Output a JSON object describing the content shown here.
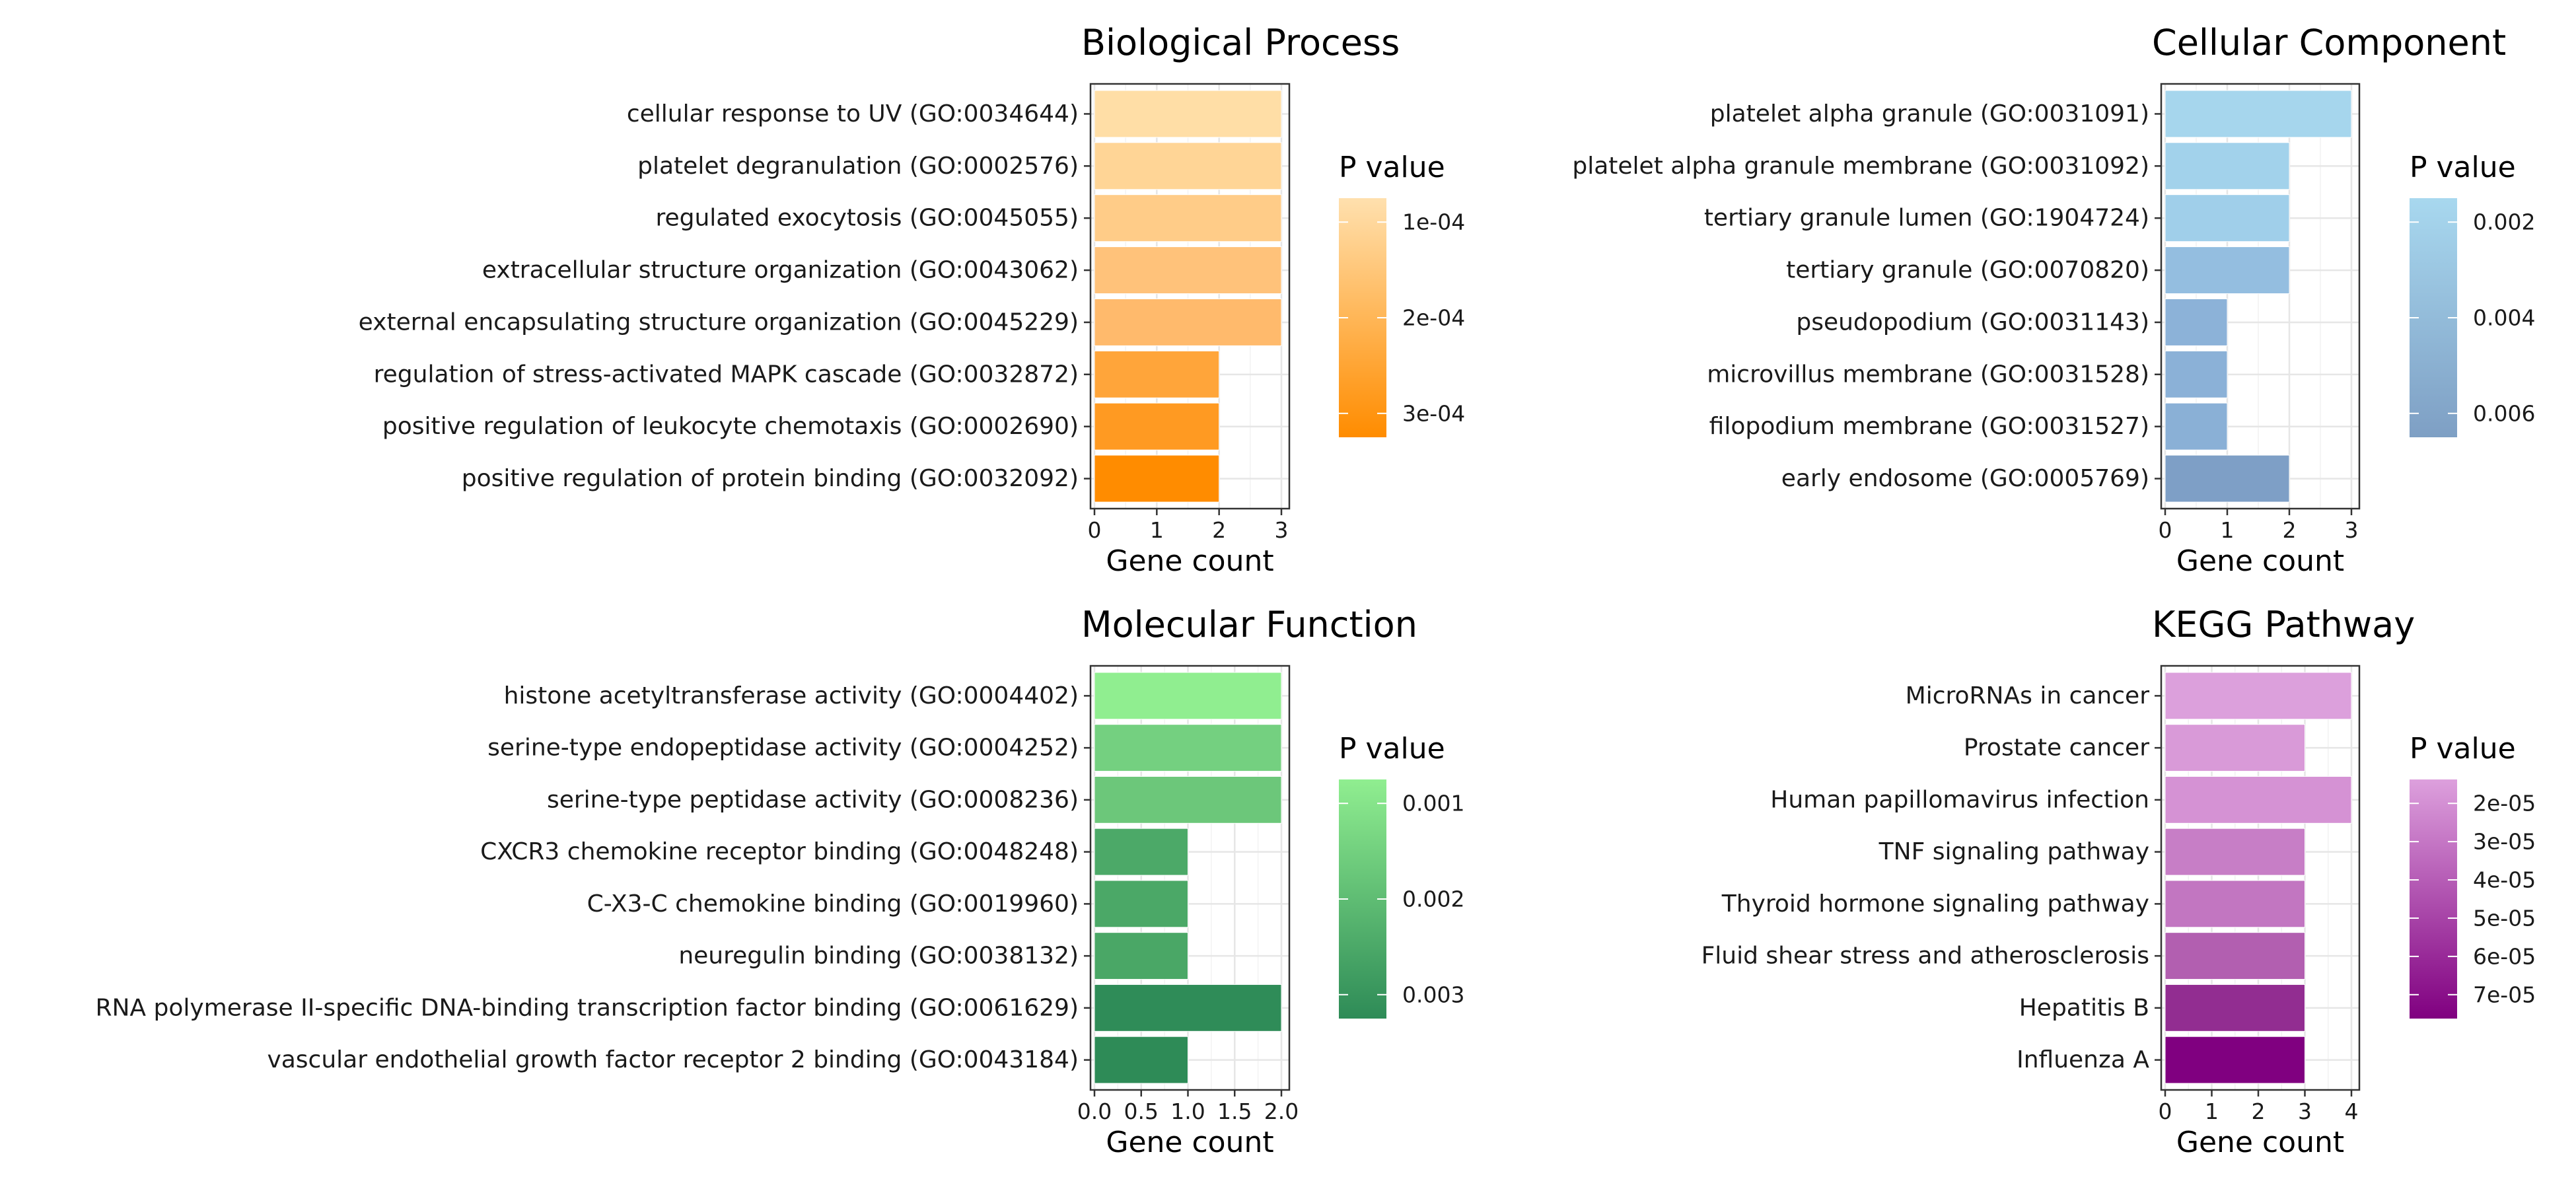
{
  "chart_data": [
    {
      "type": "bar",
      "orientation": "horizontal",
      "title": "Biological Process",
      "xlabel": "Gene count",
      "ylabel": "",
      "xlim": [
        0,
        3
      ],
      "xticks": [
        "0",
        "1",
        "2",
        "3"
      ],
      "grid": true,
      "legend": {
        "title": "P value",
        "position": "right",
        "colors": [
          "#FFE0AE",
          "#FF8C00"
        ],
        "tick_labels": [
          "1e-04",
          "2e-04",
          "3e-04"
        ]
      },
      "categories": [
        "cellular response to UV (GO:0034644)",
        "platelet degranulation (GO:0002576)",
        "regulated exocytosis (GO:0045055)",
        "extracellular structure organization (GO:0043062)",
        "external encapsulating structure organization (GO:0045229)",
        "regulation of stress-activated MAPK cascade (GO:0032872)",
        "positive regulation of leukocyte chemotaxis (GO:0002690)",
        "positive regulation of protein binding (GO:0032092)"
      ],
      "values": [
        3,
        3,
        3,
        3,
        3,
        2,
        2,
        2
      ],
      "bar_colors": [
        "#FFDEA6",
        "#FFD596",
        "#FFCC88",
        "#FFC27A",
        "#FFBA6C",
        "#FFA53A",
        "#FF9A22",
        "#FF8C00"
      ]
    },
    {
      "type": "bar",
      "orientation": "horizontal",
      "title": "Cellular Component",
      "xlabel": "Gene count",
      "ylabel": "",
      "xlim": [
        0,
        3
      ],
      "xticks": [
        "0",
        "1",
        "2",
        "3"
      ],
      "grid": true,
      "legend": {
        "title": "P value",
        "position": "right",
        "colors": [
          "#A8D8EF",
          "#7E9FC4"
        ],
        "tick_labels": [
          "0.002",
          "0.004",
          "0.006"
        ]
      },
      "categories": [
        "platelet alpha granule (GO:0031091)",
        "platelet alpha granule membrane (GO:0031092)",
        "tertiary granule lumen (GO:1904724)",
        "tertiary granule (GO:0070820)",
        "pseudopodium (GO:0031143)",
        "microvillus membrane (GO:0031528)",
        "filopodium membrane (GO:0031527)",
        "early endosome (GO:0005769)"
      ],
      "values": [
        3,
        2,
        2,
        2,
        1,
        1,
        1,
        2
      ],
      "bar_colors": [
        "#A6D6ED",
        "#A2D2EB",
        "#A0CFEA",
        "#94BEE0",
        "#8CB2D8",
        "#8BB1D7",
        "#8AB0D6",
        "#7E9FC6"
      ]
    },
    {
      "type": "bar",
      "orientation": "horizontal",
      "title": "Molecular Function",
      "xlabel": "Gene count",
      "ylabel": "",
      "xlim": [
        0,
        2
      ],
      "xticks": [
        "0.0",
        "0.5",
        "1.0",
        "1.5",
        "2.0"
      ],
      "grid": true,
      "legend": {
        "title": "P value",
        "position": "right",
        "colors": [
          "#90EE90",
          "#2E8B57"
        ],
        "tick_labels": [
          "0.001",
          "0.002",
          "0.003"
        ]
      },
      "categories": [
        "histone acetyltransferase activity (GO:0004402)",
        "serine-type endopeptidase activity (GO:0004252)",
        "serine-type peptidase activity (GO:0008236)",
        "CXCR3 chemokine receptor binding (GO:0048248)",
        "C-X3-C chemokine binding (GO:0019960)",
        "neuregulin binding (GO:0038132)",
        "RNA polymerase II-specific DNA-binding transcription factor binding (GO:0061629)",
        "vascular endothelial growth factor receptor 2 binding (GO:0043184)"
      ],
      "values": [
        2,
        2,
        2,
        1,
        1,
        1,
        2,
        1
      ],
      "bar_colors": [
        "#90EE90",
        "#74D080",
        "#6CC77A",
        "#4CA968",
        "#4BA867",
        "#4AA766",
        "#2F8C58",
        "#2E8B57"
      ]
    },
    {
      "type": "bar",
      "orientation": "horizontal",
      "title": "KEGG Pathway",
      "xlabel": "Gene count",
      "ylabel": "",
      "xlim": [
        0,
        4
      ],
      "xticks": [
        "0",
        "1",
        "2",
        "3",
        "4"
      ],
      "grid": true,
      "legend": {
        "title": "P value",
        "position": "right",
        "colors": [
          "#DDA0DD",
          "#800080"
        ],
        "tick_labels": [
          "2e-05",
          "3e-05",
          "4e-05",
          "5e-05",
          "6e-05",
          "7e-05"
        ]
      },
      "categories": [
        "MicroRNAs in cancer",
        "Prostate cancer",
        "Human papillomavirus infection",
        "TNF signaling pathway",
        "Thyroid hormone signaling pathway",
        "Fluid shear stress and atherosclerosis",
        "Hepatitis B",
        "Influenza A"
      ],
      "values": [
        4,
        3,
        4,
        3,
        3,
        3,
        3,
        3
      ],
      "bar_colors": [
        "#DCA0DC",
        "#D99AD8",
        "#D592D4",
        "#C77EC6",
        "#C276C1",
        "#B25FB0",
        "#922D91",
        "#800080"
      ]
    }
  ]
}
